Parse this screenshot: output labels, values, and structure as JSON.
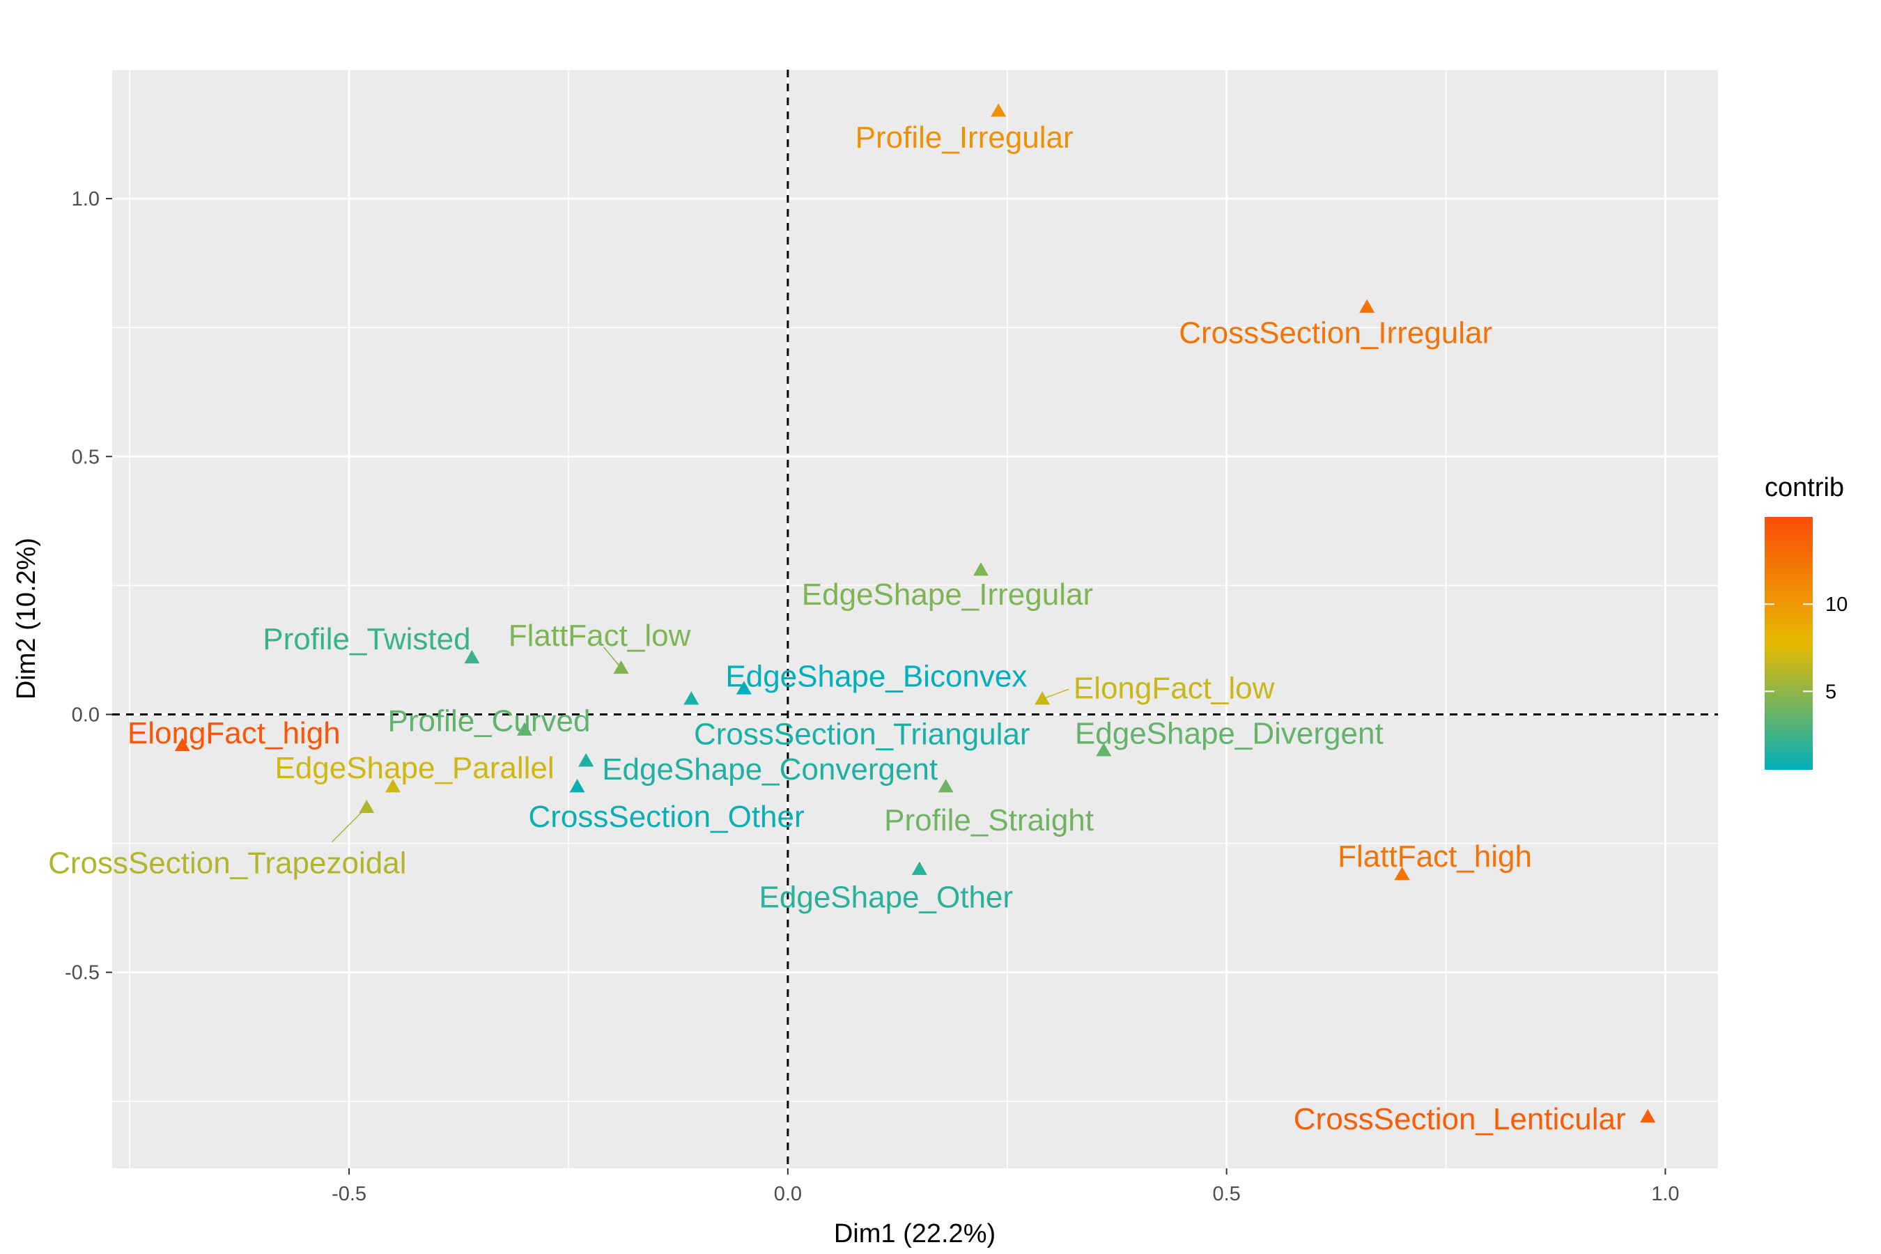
{
  "chart_data": {
    "type": "scatter",
    "xlabel": "Dim1 (22.2%)",
    "ylabel": "Dim2 (10.2%)",
    "xlim": [
      -0.77,
      1.06
    ],
    "ylim": [
      -0.88,
      1.25
    ],
    "x_ticks": [
      -0.5,
      0.0,
      0.5,
      1.0
    ],
    "x_tick_labels": [
      "-0.5",
      "0.0",
      "0.5",
      "1.0"
    ],
    "y_ticks": [
      -0.5,
      0.0,
      0.5,
      1.0
    ],
    "y_tick_labels": [
      "-0.5",
      "0.0",
      "0.5",
      "1.0"
    ],
    "grid": true,
    "reference_lines": {
      "x": 0,
      "y": 0,
      "style": "dashed"
    },
    "marker": "triangle",
    "legend": {
      "title": "contrib",
      "placement": "right",
      "range": [
        0.5,
        15
      ],
      "ticks": [
        5,
        10
      ],
      "tick_labels": [
        "5",
        "10"
      ],
      "gradient": [
        "#00AFBB",
        "#E7B800",
        "#FC4E07"
      ]
    },
    "points": [
      {
        "label": "Profile_Irregular",
        "x": 0.24,
        "y": 1.17,
        "contrib": 10.5
      },
      {
        "label": "CrossSection_Irregular",
        "x": 0.66,
        "y": 0.79,
        "contrib": 12.5
      },
      {
        "label": "EdgeShape_Irregular",
        "x": 0.22,
        "y": 0.28,
        "contrib": 4.5
      },
      {
        "label": "Profile_Twisted",
        "x": -0.36,
        "y": 0.11,
        "contrib": 2.3
      },
      {
        "label": "FlattFact_low",
        "x": -0.19,
        "y": 0.09,
        "contrib": 4.5
      },
      {
        "label": "EdgeShape_Biconvex",
        "x": -0.05,
        "y": 0.05,
        "contrib": 0.5
      },
      {
        "label": "ElongFact_low",
        "x": 0.29,
        "y": 0.03,
        "contrib": 6.8
      },
      {
        "label": "CrossSection_Triangular",
        "x": -0.11,
        "y": 0.03,
        "contrib": 1.3
      },
      {
        "label": "ElongFact_high",
        "x": -0.69,
        "y": -0.06,
        "contrib": 14.5
      },
      {
        "label": "Profile_Curved",
        "x": -0.3,
        "y": -0.03,
        "contrib": 3.5
      },
      {
        "label": "EdgeShape_Divergent",
        "x": 0.36,
        "y": -0.07,
        "contrib": 3.6
      },
      {
        "label": "EdgeShape_Parallel",
        "x": -0.45,
        "y": -0.14,
        "contrib": 7.0
      },
      {
        "label": "EdgeShape_Convergent",
        "x": -0.23,
        "y": -0.09,
        "contrib": 1.5
      },
      {
        "label": "CrossSection_Other",
        "x": -0.24,
        "y": -0.14,
        "contrib": 0.8
      },
      {
        "label": "Profile_Straight",
        "x": 0.18,
        "y": -0.14,
        "contrib": 4.0
      },
      {
        "label": "CrossSection_Trapezoidal",
        "x": -0.48,
        "y": -0.18,
        "contrib": 6.0
      },
      {
        "label": "EdgeShape_Other",
        "x": 0.15,
        "y": -0.3,
        "contrib": 1.8
      },
      {
        "label": "FlattFact_high",
        "x": 0.7,
        "y": -0.31,
        "contrib": 12.5
      },
      {
        "label": "CrossSection_Lenticular",
        "x": 0.98,
        "y": -0.78,
        "contrib": 14.0
      }
    ]
  }
}
